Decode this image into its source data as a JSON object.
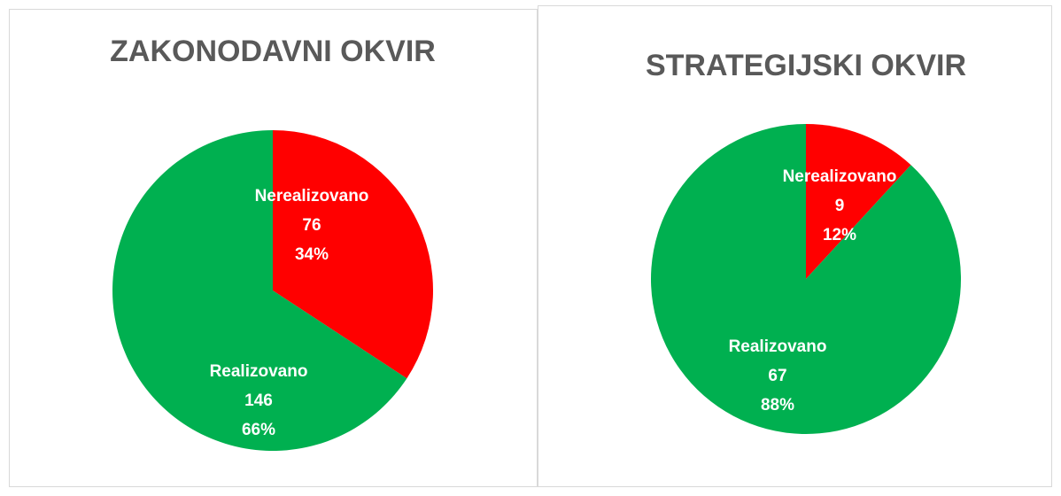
{
  "chart_data": [
    {
      "type": "pie",
      "title": "ZAKONODAVNI OKVIR",
      "categories": [
        "Nerealizovano",
        "Realizovano"
      ],
      "values": [
        76,
        146
      ],
      "percents": [
        34,
        66
      ],
      "percent_labels": [
        "34%",
        "66%"
      ],
      "colors": [
        "#ff0000",
        "#00b050"
      ]
    },
    {
      "type": "pie",
      "title": "STRATEGIJSKI OKVIR",
      "categories": [
        "Nerealizovano",
        "Realizovano"
      ],
      "values": [
        9,
        67
      ],
      "percents": [
        12,
        88
      ],
      "percent_labels": [
        "12%",
        "88%"
      ],
      "colors": [
        "#ff0000",
        "#00b050"
      ]
    }
  ]
}
